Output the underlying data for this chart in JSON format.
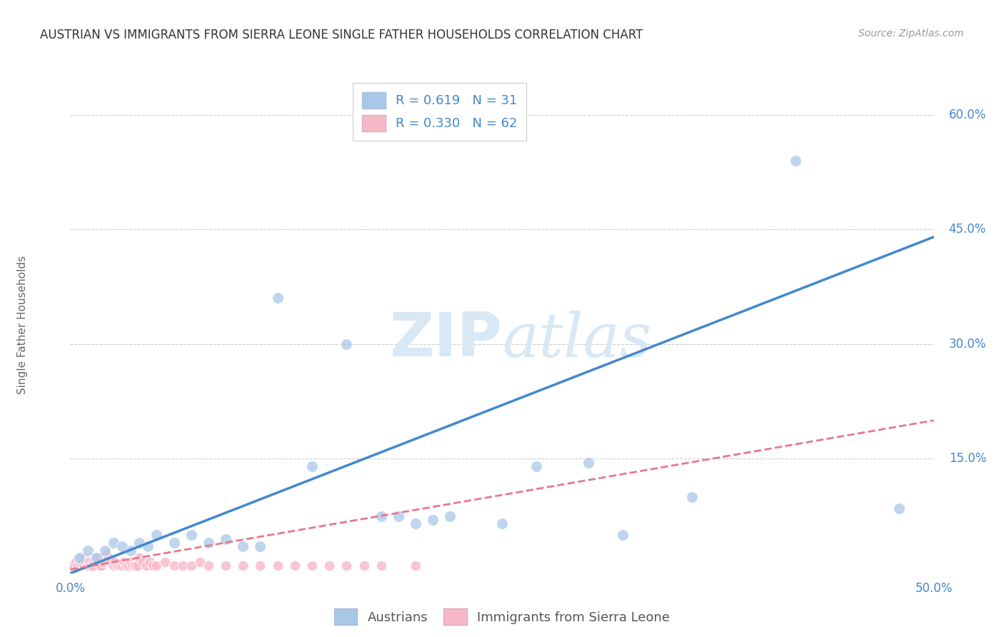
{
  "title": "AUSTRIAN VS IMMIGRANTS FROM SIERRA LEONE SINGLE FATHER HOUSEHOLDS CORRELATION CHART",
  "source": "Source: ZipAtlas.com",
  "ylabel": "Single Father Households",
  "xlim": [
    0.0,
    0.5
  ],
  "ylim": [
    0.0,
    0.65
  ],
  "xticks": [
    0.0,
    0.1,
    0.2,
    0.3,
    0.4,
    0.5
  ],
  "yticks": [
    0.0,
    0.15,
    0.3,
    0.45,
    0.6
  ],
  "ytick_labels": [
    "",
    "15.0%",
    "30.0%",
    "45.0%",
    "60.0%"
  ],
  "xtick_labels": [
    "0.0%",
    "",
    "",
    "",
    "",
    "50.0%"
  ],
  "blue_scatter_x": [
    0.005,
    0.01,
    0.015,
    0.02,
    0.025,
    0.03,
    0.035,
    0.04,
    0.045,
    0.05,
    0.06,
    0.07,
    0.08,
    0.09,
    0.1,
    0.11,
    0.12,
    0.14,
    0.16,
    0.18,
    0.19,
    0.2,
    0.21,
    0.22,
    0.25,
    0.27,
    0.3,
    0.32,
    0.36,
    0.42,
    0.48
  ],
  "blue_scatter_y": [
    0.02,
    0.03,
    0.02,
    0.03,
    0.04,
    0.035,
    0.03,
    0.04,
    0.035,
    0.05,
    0.04,
    0.05,
    0.04,
    0.045,
    0.035,
    0.035,
    0.36,
    0.14,
    0.3,
    0.075,
    0.075,
    0.065,
    0.07,
    0.075,
    0.065,
    0.14,
    0.145,
    0.05,
    0.1,
    0.54,
    0.085
  ],
  "pink_scatter_x": [
    0.001,
    0.002,
    0.003,
    0.004,
    0.005,
    0.006,
    0.007,
    0.008,
    0.009,
    0.01,
    0.011,
    0.012,
    0.013,
    0.014,
    0.015,
    0.016,
    0.017,
    0.018,
    0.019,
    0.02,
    0.021,
    0.022,
    0.023,
    0.024,
    0.025,
    0.026,
    0.027,
    0.028,
    0.029,
    0.03,
    0.031,
    0.032,
    0.033,
    0.034,
    0.035,
    0.036,
    0.037,
    0.038,
    0.039,
    0.04,
    0.042,
    0.044,
    0.046,
    0.048,
    0.05,
    0.055,
    0.06,
    0.065,
    0.07,
    0.075,
    0.08,
    0.09,
    0.1,
    0.11,
    0.12,
    0.13,
    0.14,
    0.15,
    0.16,
    0.17,
    0.18,
    0.2
  ],
  "pink_scatter_y": [
    0.01,
    0.01,
    0.015,
    0.01,
    0.015,
    0.02,
    0.015,
    0.02,
    0.015,
    0.01,
    0.015,
    0.01,
    0.01,
    0.015,
    0.02,
    0.015,
    0.01,
    0.01,
    0.015,
    0.02,
    0.025,
    0.02,
    0.015,
    0.015,
    0.01,
    0.015,
    0.01,
    0.01,
    0.01,
    0.01,
    0.015,
    0.01,
    0.01,
    0.01,
    0.015,
    0.01,
    0.01,
    0.01,
    0.01,
    0.02,
    0.015,
    0.01,
    0.015,
    0.01,
    0.01,
    0.015,
    0.01,
    0.01,
    0.01,
    0.015,
    0.01,
    0.01,
    0.01,
    0.01,
    0.01,
    0.01,
    0.01,
    0.01,
    0.01,
    0.01,
    0.01,
    0.01
  ],
  "blue_R": 0.619,
  "blue_N": 31,
  "pink_R": 0.33,
  "pink_N": 62,
  "blue_line_x": [
    0.0,
    0.5
  ],
  "blue_line_y": [
    0.0,
    0.44
  ],
  "pink_line_x": [
    0.0,
    0.5
  ],
  "pink_line_y": [
    0.005,
    0.2
  ],
  "blue_color": "#a8c8e8",
  "blue_line_color": "#4488cc",
  "pink_color": "#f8b8c8",
  "pink_line_color": "#e8788a",
  "axis_label_color": "#4488cc",
  "tick_label_color": "#4488cc",
  "background_color": "#ffffff",
  "grid_color": "#cccccc",
  "watermark_color": "#d8e8f4",
  "title_color": "#333333",
  "source_color": "#999999",
  "ylabel_color": "#666666",
  "legend_label_color": "#4488cc",
  "bottom_legend_color": "#555555",
  "title_fontsize": 12,
  "source_fontsize": 10,
  "tick_fontsize": 12,
  "ylabel_fontsize": 11,
  "legend_fontsize": 13
}
